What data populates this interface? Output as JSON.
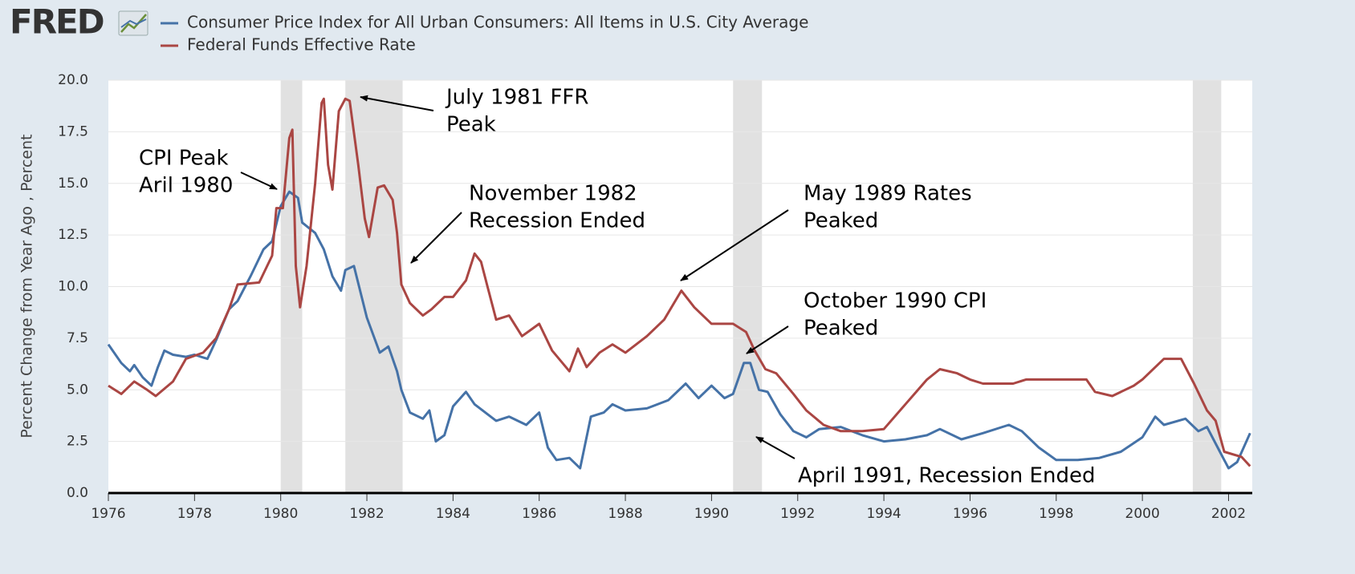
{
  "chart_data": {
    "type": "line",
    "logo": "FRED",
    "ylabel": "Percent Change from Year Ago , Percent",
    "xlim": [
      1976.0,
      2002.55
    ],
    "xticks": [
      1976,
      1978,
      1980,
      1982,
      1984,
      1986,
      1988,
      1990,
      1992,
      1994,
      1996,
      1998,
      2000,
      2002
    ],
    "ylim": [
      0,
      20
    ],
    "yticks": [
      {
        "value": 0,
        "label": "0.0"
      },
      {
        "value": 2.5,
        "label": "2.5"
      },
      {
        "value": 5,
        "label": "5.0"
      },
      {
        "value": 7.5,
        "label": "7.5"
      },
      {
        "value": 10,
        "label": "10.0"
      },
      {
        "value": 12.5,
        "label": "12.5"
      },
      {
        "value": 15,
        "label": "15.0"
      },
      {
        "value": 17.5,
        "label": "17.5"
      },
      {
        "value": 20,
        "label": "20.0"
      }
    ],
    "grid": true,
    "recessions": [
      [
        1980.0,
        1980.5
      ],
      [
        1981.5,
        1982.83
      ],
      [
        1990.5,
        1991.17
      ],
      [
        2001.17,
        2001.83
      ]
    ],
    "series": [
      {
        "name": "Consumer Price Index for All Urban Consumers: All Items in U.S. City Average",
        "color": "#4572a7",
        "x": [
          1976.0,
          1976.3,
          1976.5,
          1976.6,
          1976.8,
          1977.0,
          1977.15,
          1977.3,
          1977.5,
          1977.8,
          1978.0,
          1978.3,
          1978.5,
          1978.8,
          1979.0,
          1979.3,
          1979.6,
          1979.8,
          1980.0,
          1980.2,
          1980.4,
          1980.5,
          1980.8,
          1981.0,
          1981.2,
          1981.4,
          1981.5,
          1981.7,
          1982.0,
          1982.3,
          1982.5,
          1982.7,
          1982.8,
          1983.0,
          1983.3,
          1983.45,
          1983.6,
          1983.8,
          1984.0,
          1984.3,
          1984.5,
          1985.0,
          1985.3,
          1985.7,
          1986.0,
          1986.2,
          1986.4,
          1986.7,
          1986.95,
          1987.2,
          1987.5,
          1987.7,
          1988.0,
          1988.5,
          1989.0,
          1989.4,
          1989.7,
          1990.0,
          1990.3,
          1990.5,
          1990.75,
          1990.9,
          1991.1,
          1991.3,
          1991.6,
          1991.9,
          1992.2,
          1992.5,
          1993.0,
          1993.5,
          1994.0,
          1994.5,
          1995.0,
          1995.3,
          1995.8,
          1996.3,
          1996.9,
          1997.2,
          1997.6,
          1998.0,
          1998.5,
          1999.0,
          1999.5,
          2000.0,
          2000.3,
          2000.5,
          2001.0,
          2001.3,
          2001.5,
          2001.8,
          2002.0,
          2002.2,
          2002.5
        ],
        "values": [
          7.2,
          6.3,
          5.9,
          6.2,
          5.6,
          5.2,
          6.1,
          6.9,
          6.7,
          6.6,
          6.7,
          6.5,
          7.4,
          8.9,
          9.3,
          10.5,
          11.8,
          12.2,
          13.9,
          14.6,
          14.3,
          13.1,
          12.6,
          11.8,
          10.5,
          9.8,
          10.8,
          11.0,
          8.5,
          6.8,
          7.1,
          5.9,
          5.0,
          3.9,
          3.6,
          4.0,
          2.5,
          2.8,
          4.2,
          4.9,
          4.3,
          3.5,
          3.7,
          3.3,
          3.9,
          2.2,
          1.6,
          1.7,
          1.2,
          3.7,
          3.9,
          4.3,
          4.0,
          4.1,
          4.5,
          5.3,
          4.6,
          5.2,
          4.6,
          4.8,
          6.3,
          6.3,
          5.0,
          4.9,
          3.8,
          3.0,
          2.7,
          3.1,
          3.2,
          2.8,
          2.5,
          2.6,
          2.8,
          3.1,
          2.6,
          2.9,
          3.3,
          3.0,
          2.2,
          1.6,
          1.6,
          1.7,
          2.0,
          2.7,
          3.7,
          3.3,
          3.6,
          3.0,
          3.2,
          2.0,
          1.2,
          1.5,
          2.9
        ]
      },
      {
        "name": "Federal Funds Effective Rate",
        "color": "#aa4643",
        "x": [
          1976.0,
          1976.3,
          1976.6,
          1976.9,
          1977.1,
          1977.5,
          1977.8,
          1978.2,
          1978.5,
          1978.8,
          1979.0,
          1979.5,
          1979.8,
          1979.9,
          1980.05,
          1980.2,
          1980.27,
          1980.35,
          1980.45,
          1980.6,
          1980.8,
          1980.95,
          1981.0,
          1981.1,
          1981.2,
          1981.35,
          1981.5,
          1981.6,
          1981.8,
          1981.95,
          1982.05,
          1982.25,
          1982.4,
          1982.6,
          1982.7,
          1982.8,
          1983.0,
          1983.3,
          1983.5,
          1983.8,
          1984.0,
          1984.3,
          1984.5,
          1984.65,
          1984.8,
          1985.0,
          1985.3,
          1985.6,
          1985.8,
          1986.0,
          1986.3,
          1986.7,
          1986.9,
          1987.1,
          1987.4,
          1987.7,
          1988.0,
          1988.5,
          1988.9,
          1989.3,
          1989.6,
          1990.0,
          1990.5,
          1990.8,
          1991.0,
          1991.25,
          1991.5,
          1991.9,
          1992.2,
          1992.6,
          1993.0,
          1993.5,
          1994.0,
          1994.5,
          1995.0,
          1995.3,
          1995.7,
          1996.0,
          1996.3,
          1997.0,
          1997.3,
          1998.0,
          1998.7,
          1998.9,
          1999.3,
          1999.8,
          2000.0,
          2000.5,
          2000.9,
          2001.2,
          2001.5,
          2001.7,
          2001.9,
          2002.3,
          2002.5
        ],
        "values": [
          5.2,
          4.8,
          5.4,
          5.0,
          4.7,
          5.4,
          6.5,
          6.8,
          7.5,
          8.9,
          10.1,
          10.2,
          11.5,
          13.8,
          13.8,
          17.2,
          17.6,
          11.0,
          9.0,
          11.0,
          15.0,
          18.9,
          19.1,
          15.9,
          14.7,
          18.5,
          19.1,
          19.0,
          15.9,
          13.3,
          12.4,
          14.8,
          14.9,
          14.2,
          12.6,
          10.1,
          9.2,
          8.6,
          8.9,
          9.5,
          9.5,
          10.3,
          11.6,
          11.2,
          10.0,
          8.4,
          8.6,
          7.6,
          7.9,
          8.2,
          6.9,
          5.9,
          7.0,
          6.1,
          6.8,
          7.2,
          6.8,
          7.6,
          8.4,
          9.8,
          9.0,
          8.2,
          8.2,
          7.8,
          6.9,
          6.0,
          5.8,
          4.8,
          4.0,
          3.3,
          3.0,
          3.0,
          3.1,
          4.3,
          5.5,
          6.0,
          5.8,
          5.5,
          5.3,
          5.3,
          5.5,
          5.5,
          5.5,
          4.9,
          4.7,
          5.2,
          5.5,
          6.5,
          6.5,
          5.3,
          4.0,
          3.5,
          2.0,
          1.75,
          1.3
        ]
      }
    ],
    "annotations": [
      {
        "text": [
          "CPI Peak",
          "Aril 1980"
        ]
      },
      {
        "text": [
          "July 1981 FFR",
          "Peak"
        ]
      },
      {
        "text": [
          "November 1982",
          "Recession Ended"
        ]
      },
      {
        "text": [
          "May 1989 Rates",
          "Peaked"
        ]
      },
      {
        "text": [
          "October 1990 CPI",
          "Peaked"
        ]
      },
      {
        "text": [
          "April 1991, Recession Ended"
        ]
      }
    ]
  }
}
